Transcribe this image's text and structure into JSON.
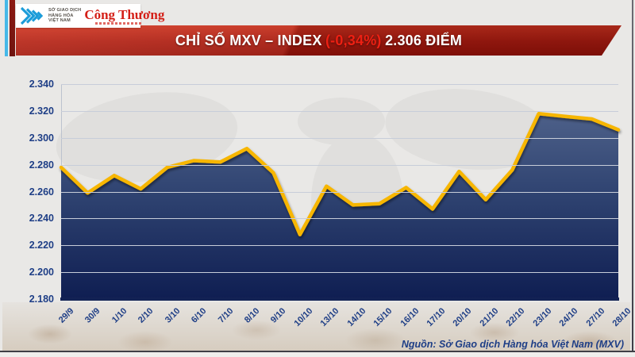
{
  "header": {
    "mxv_logo": {
      "icon": "mxv-chevrons-icon",
      "org_lines": [
        "SỞ GIAO DỊCH",
        "HÀNG HÓA",
        "VIỆT NAM"
      ]
    },
    "congthuong_logo": {
      "text": "Công Thương"
    },
    "banner": {
      "title_prefix": "CHỈ SỐ MXV – INDEX",
      "change": "(-0,34%)",
      "value_text": "2.306 ĐIỂM"
    }
  },
  "chart_data": {
    "type": "area",
    "title": "CHỈ SỐ MXV – INDEX (-0,34%) 2.306 ĐIỂM",
    "categories": [
      "29/9",
      "30/9",
      "1/10",
      "2/10",
      "3/10",
      "6/10",
      "7/10",
      "8/10",
      "9/10",
      "10/10",
      "13/10",
      "14/10",
      "15/10",
      "16/10",
      "17/10",
      "20/10",
      "21/10",
      "22/10",
      "23/10",
      "24/10",
      "27/10",
      "28/10"
    ],
    "values": [
      2.278,
      2.259,
      2.272,
      2.262,
      2.278,
      2.283,
      2.282,
      2.292,
      2.274,
      2.228,
      2.264,
      2.25,
      2.251,
      2.263,
      2.247,
      2.275,
      2.254,
      2.276,
      2.318,
      2.316,
      2.314,
      2.306
    ],
    "ylim": [
      2.18,
      2.34
    ],
    "yticks": [
      "2.340",
      "2.320",
      "2.300",
      "2.280",
      "2.260",
      "2.240",
      "2.220",
      "2.200",
      "2.180"
    ],
    "grid": true,
    "legend": "none",
    "line_color": "#f7b600",
    "fill_top": "#4d6089",
    "fill_mid": "#2e4270",
    "fill_bottom": "#0f1e52",
    "axis_text_color": "#1e3e86"
  },
  "footer": {
    "source": "Nguồn: Sở Giao dịch Hàng hóa Việt Nam (MXV)"
  }
}
